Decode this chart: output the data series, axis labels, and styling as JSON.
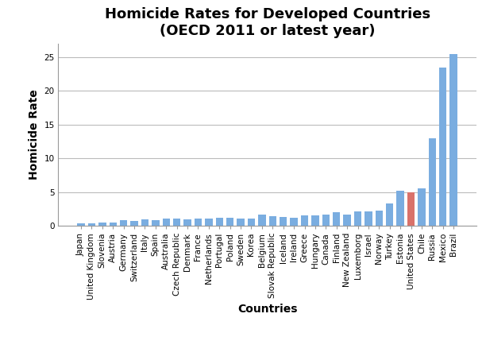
{
  "title": "Homicide Rates for Developed Countries\n(OECD 2011 or latest year)",
  "xlabel": "Countries",
  "ylabel": "Homicide Rate",
  "ylim": [
    0,
    27
  ],
  "yticks": [
    0,
    5,
    10,
    15,
    20,
    25
  ],
  "countries": [
    "Japan",
    "United Kingdom",
    "Slovenia",
    "Austria",
    "Germany",
    "Switzerland",
    "Italy",
    "Spain",
    "Australia",
    "Czech Republic",
    "Denmark",
    "France",
    "Netherlands",
    "Portugal",
    "Poland",
    "Sweden",
    "Korea",
    "Belgium",
    "Slovak Republic",
    "Iceland",
    "Ireland",
    "Greece",
    "Hungary",
    "Canada",
    "Finland",
    "New Zealand",
    "Luxemborg",
    "Israel",
    "Norway",
    "Turkey",
    "Estonia",
    "United States",
    "Chile",
    "Russia",
    "Mexico",
    "Brazil"
  ],
  "values": [
    0.3,
    0.3,
    0.5,
    0.5,
    0.8,
    0.7,
    0.9,
    0.8,
    1.0,
    1.0,
    0.9,
    1.0,
    1.0,
    1.2,
    1.2,
    1.0,
    1.1,
    1.6,
    1.4,
    1.3,
    1.2,
    1.5,
    1.5,
    1.6,
    2.0,
    1.7,
    2.1,
    2.1,
    2.2,
    3.3,
    5.2,
    5.0,
    5.5,
    13.0,
    23.5,
    25.5
  ],
  "bar_color_default": "#7aade0",
  "bar_color_highlight": "#d9726a",
  "highlight_index": 31,
  "background_color": "#ffffff",
  "title_fontsize": 13,
  "axis_label_fontsize": 10,
  "tick_fontsize": 7.5
}
